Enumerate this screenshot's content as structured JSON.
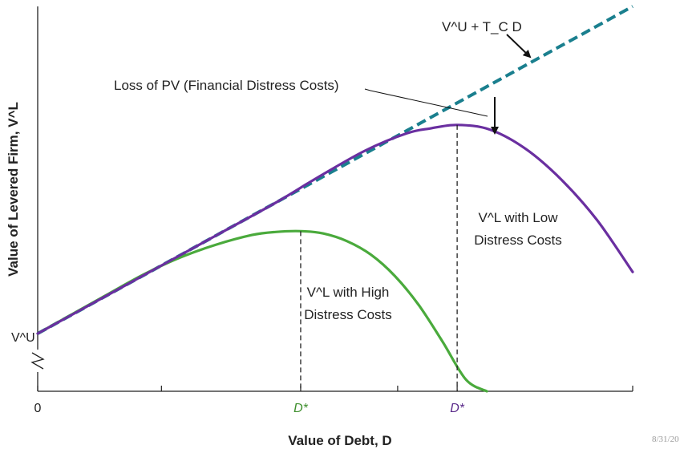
{
  "chart_data": {
    "type": "line",
    "title": "",
    "xlabel": "Value of Debt, D",
    "ylabel": "Value of Levered Firm, V^L",
    "xlim": [
      0,
      100
    ],
    "ylim": [
      0,
      100
    ],
    "grid": false,
    "x_ticks": [
      {
        "x": 0,
        "label": "0"
      },
      {
        "x": 20.8,
        "label": ""
      },
      {
        "x": 44.2,
        "label": "D*"
      },
      {
        "x": 60.5,
        "label": ""
      },
      {
        "x": 70.5,
        "label": "D*"
      },
      {
        "x": 100,
        "label": ""
      }
    ],
    "y_break_label": "V^U",
    "series": [
      {
        "name": "V^U + T_C D",
        "style": "dashed",
        "color": "#1a7f8e",
        "x": [
          0,
          100
        ],
        "y": [
          15,
          100
        ]
      },
      {
        "name": "V^L with Low Distress Costs",
        "color": "#6a2fa0",
        "x": [
          0,
          10,
          20,
          30,
          40,
          47,
          55,
          62,
          66,
          70.5,
          76,
          82,
          88,
          94,
          100
        ],
        "y": [
          15,
          23.5,
          32,
          40.5,
          49,
          55.5,
          62.5,
          67,
          68.3,
          69.2,
          68,
          63,
          55,
          44.5,
          31
        ]
      },
      {
        "name": "V^L with High Distress Costs",
        "color": "#4aaa3c",
        "x": [
          0,
          6,
          12,
          18,
          24,
          30,
          36,
          40,
          44.2,
          48,
          52,
          56,
          60,
          64,
          68,
          72,
          75.5
        ],
        "y": [
          15,
          20.2,
          25.4,
          30.5,
          34.8,
          38.1,
          40.6,
          41.4,
          41.6,
          41,
          39,
          35.5,
          30,
          22.5,
          13,
          3,
          0
        ]
      }
    ],
    "vertical_markers": [
      {
        "x": 44.2,
        "y": 41.6,
        "color": "#222222",
        "style": "dashed"
      },
      {
        "x": 70.5,
        "y": 69.2,
        "color": "#222222",
        "style": "dashed"
      }
    ],
    "annotations": {
      "tangent_label": "V^U + T_C D",
      "loss_label": "Loss of PV (Financial Distress Costs)",
      "low_label_line1": "V^L with Low",
      "low_label_line2": "Distress Costs",
      "high_label_line1": "V^L with High",
      "high_label_line2": "Distress Costs"
    },
    "colors": {
      "tangent": "#1a7f8e",
      "low": "#6a2fa0",
      "high": "#4aaa3c",
      "axis": "#222222",
      "dstar_high": "#3e8f2d",
      "dstar_low": "#5a2a8a"
    }
  },
  "footer": {
    "date_stamp": "8/31/20"
  }
}
